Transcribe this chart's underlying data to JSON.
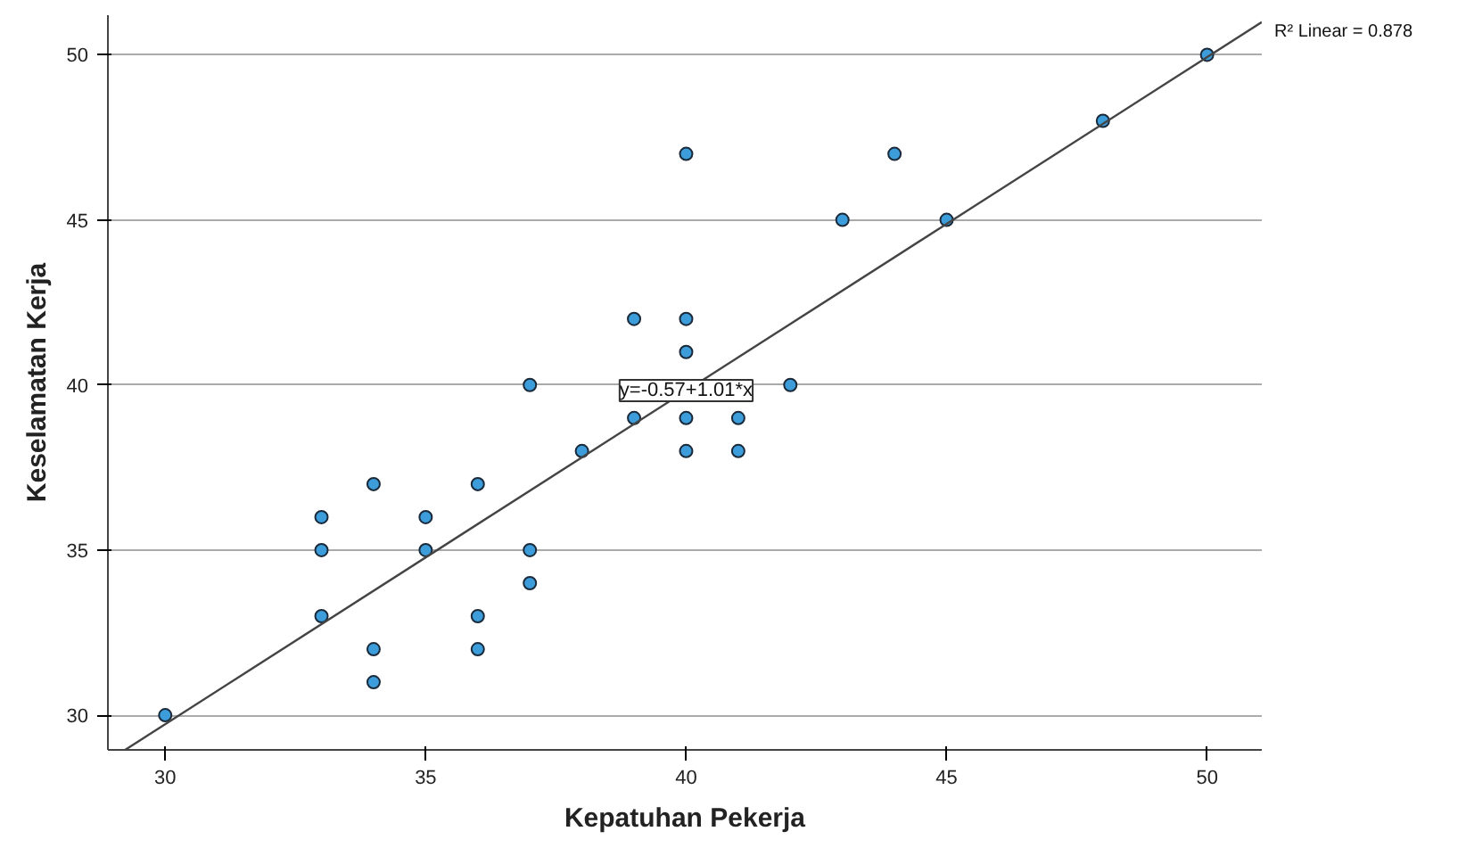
{
  "chart_data": {
    "type": "scatter",
    "xlabel": "Kepatuhan Pekerja",
    "ylabel": "Keselamatan Kerja",
    "xlim": [
      28.9,
      51.05
    ],
    "ylim": [
      28.95,
      51.2
    ],
    "xticks": [
      30,
      35,
      40,
      45,
      50
    ],
    "yticks": [
      30,
      35,
      40,
      45,
      50
    ],
    "grid": "y",
    "series": [
      {
        "marker": "circle",
        "color": "#3d9ddb",
        "x": [
          30,
          33,
          33,
          33,
          34,
          34,
          34,
          35,
          35,
          36,
          36,
          36,
          37,
          37,
          37,
          38,
          39,
          39,
          40,
          40,
          40,
          40,
          40,
          41,
          41,
          42,
          43,
          44,
          45,
          48,
          50
        ],
        "values": [
          30,
          36,
          35,
          33,
          37,
          32,
          31,
          36,
          35,
          37,
          33,
          32,
          40,
          35,
          34,
          38,
          42,
          39,
          47,
          42,
          41,
          39,
          38,
          39,
          38,
          40,
          45,
          47,
          45,
          48,
          50
        ]
      },
      {
        "type": "line",
        "color": "#444444",
        "line_style": "solid",
        "x": [
          29.23,
          51.05
        ],
        "values": [
          28.95,
          50.99
        ]
      }
    ],
    "annotations": [
      {
        "text": "y=-0.57+1.01*x",
        "x": 40,
        "y": 39.83
      },
      "R² Linear = 0.878"
    ]
  }
}
